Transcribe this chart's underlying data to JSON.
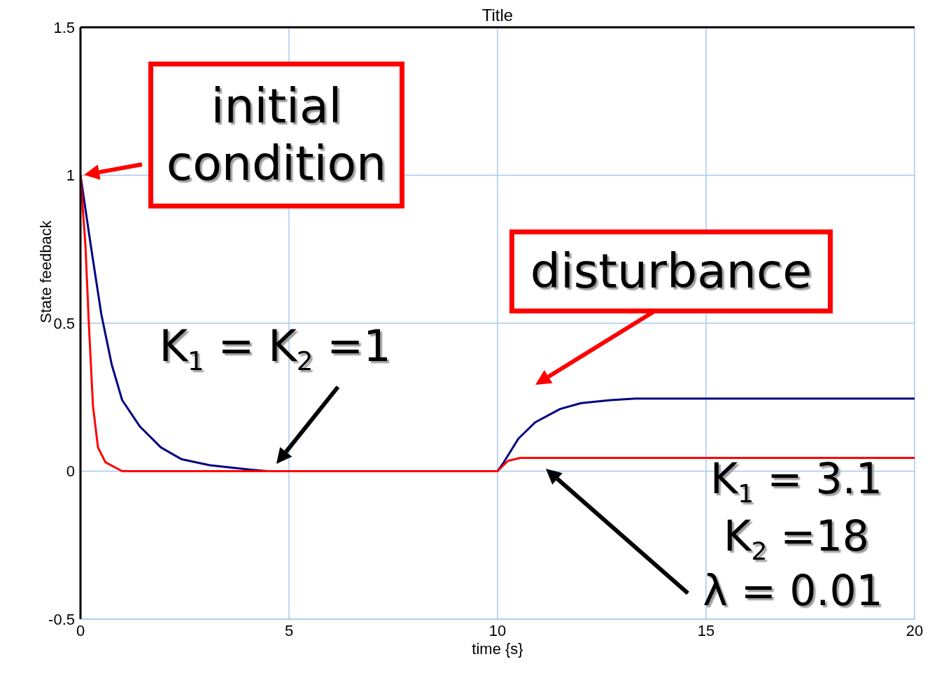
{
  "chart_data": {
    "type": "line",
    "title": "Title",
    "xlabel": "time {s}",
    "ylabel": "State feedback",
    "annotations": [
      "initial condition",
      "disturbance",
      "K$_{1}$ = K$_{2}$ =1",
      "K$_{1}$ = 3.1",
      "K$_{2}$ =18",
      "λ = 0.01"
    ],
    "xlim": [
      0,
      20
    ],
    "xticks": [
      0,
      5,
      10,
      15,
      20
    ],
    "ylim": [
      -0.5,
      1.5
    ],
    "yticks": [
      -0.5,
      0,
      0.5,
      1,
      1.5
    ],
    "grid": true,
    "marker": "none",
    "line_style": "solid",
    "series": [
      {
        "color": "#000080",
        "x": [
          0,
          0.25,
          0.5,
          0.75,
          1,
          1.43,
          1.93,
          2.43,
          3.1,
          4.1,
          4.5,
          10,
          10.15,
          10.5,
          10.9,
          11.5,
          12,
          12.7,
          13.3,
          20
        ],
        "values": [
          1,
          0.76,
          0.53,
          0.36,
          0.24,
          0.15,
          0.08,
          0.04,
          0.02,
          0.005,
          0,
          0,
          0.03,
          0.11,
          0.165,
          0.21,
          0.23,
          0.24,
          0.245,
          0.245
        ]
      },
      {
        "color": "#ff0000",
        "x": [
          0,
          0.12,
          0.2,
          0.3,
          0.42,
          0.6,
          1,
          10,
          10.25,
          10.55,
          20
        ],
        "values": [
          1,
          0.76,
          0.5,
          0.22,
          0.08,
          0.03,
          0,
          0,
          0.035,
          0.045,
          0.045
        ]
      }
    ]
  }
}
